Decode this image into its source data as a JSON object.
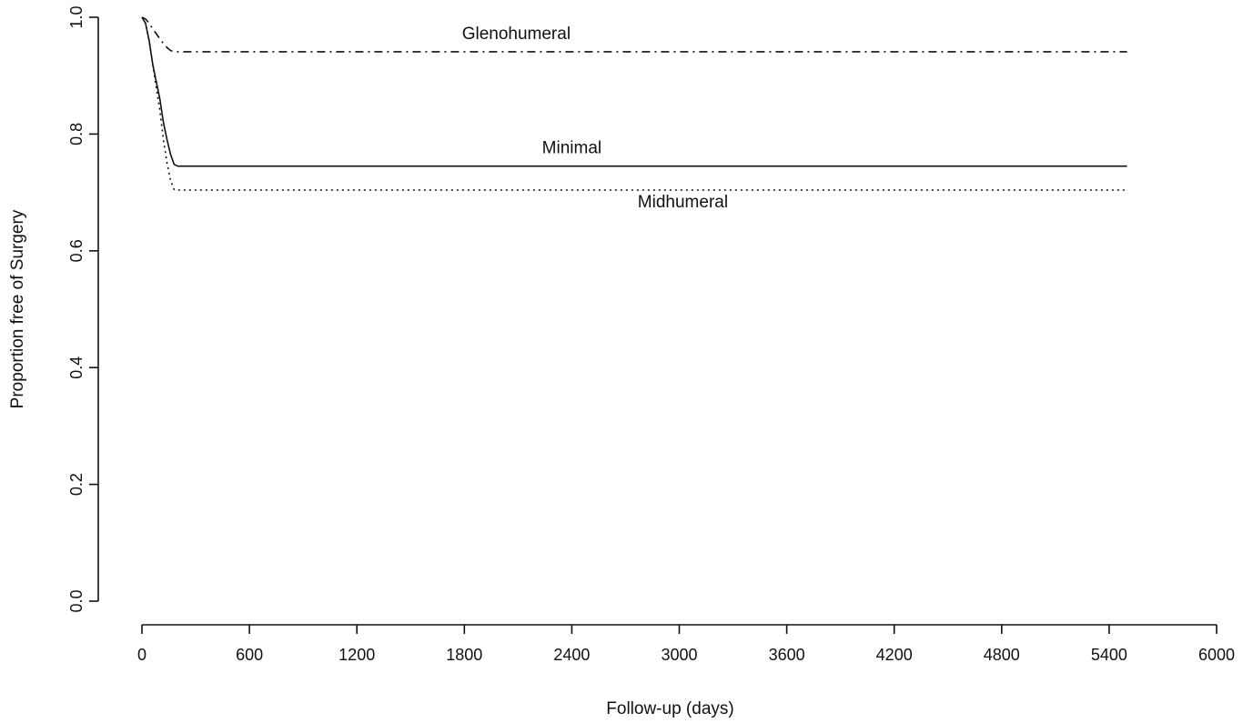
{
  "chart_data": {
    "type": "line",
    "title": "",
    "xlabel": "Follow-up (days)",
    "ylabel": "Proportion free of Surgery",
    "xlim": [
      0,
      6000
    ],
    "ylim": [
      0.0,
      1.0
    ],
    "xticks": [
      "0",
      "600",
      "1200",
      "1800",
      "2400",
      "3000",
      "3600",
      "4200",
      "4800",
      "5400",
      "6000"
    ],
    "yticks": [
      "0.0",
      "0.2",
      "0.4",
      "0.6",
      "0.8",
      "1.0"
    ],
    "grid": false,
    "legend": "none (series labeled inline)",
    "series": [
      {
        "name": "Glenohumeral",
        "line_style": "dash-dot",
        "x": [
          0,
          20,
          40,
          60,
          80,
          100,
          120,
          140,
          160,
          180,
          200,
          5500
        ],
        "y": [
          1.0,
          0.997,
          0.99,
          0.98,
          0.972,
          0.963,
          0.955,
          0.948,
          0.943,
          0.941,
          0.941,
          0.941
        ]
      },
      {
        "name": "Minimal",
        "line_style": "solid",
        "x": [
          0,
          20,
          40,
          60,
          80,
          100,
          120,
          140,
          160,
          180,
          200,
          5500
        ],
        "y": [
          1.0,
          0.99,
          0.96,
          0.92,
          0.89,
          0.86,
          0.82,
          0.79,
          0.765,
          0.748,
          0.745,
          0.745
        ]
      },
      {
        "name": "Midhumeral",
        "line_style": "dotted",
        "x": [
          0,
          20,
          40,
          60,
          80,
          100,
          120,
          140,
          160,
          180,
          200,
          5500
        ],
        "y": [
          1.0,
          0.99,
          0.96,
          0.92,
          0.88,
          0.84,
          0.79,
          0.75,
          0.72,
          0.705,
          0.704,
          0.704
        ]
      }
    ]
  }
}
